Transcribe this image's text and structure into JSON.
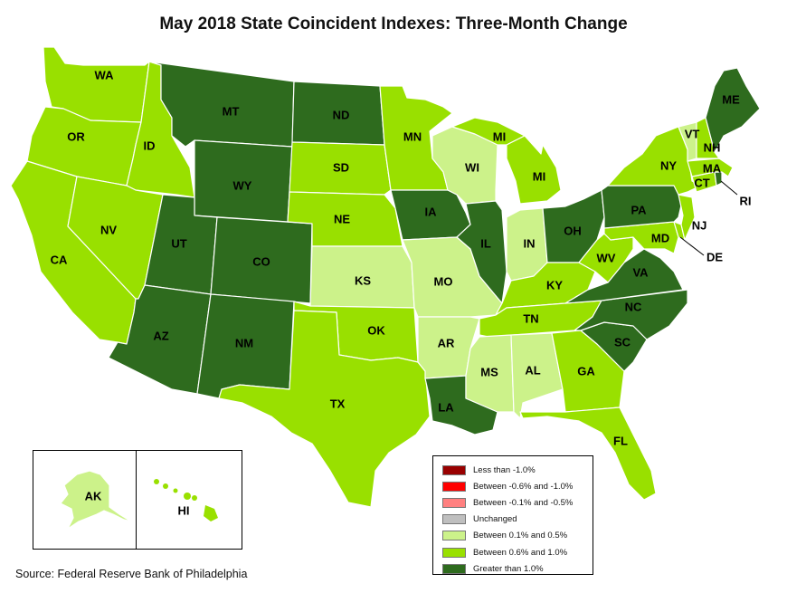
{
  "title": "May 2018 State Coincident Indexes: Three-Month Change",
  "source": "Source: Federal Reserve Bank of Philadelphia",
  "colors": {
    "less_than_neg1": "#990000",
    "neg06_to_neg1": "#ff0000",
    "neg01_to_neg05": "#ff8080",
    "unchanged": "#bfbfbf",
    "pos01_to_05": "#ccf28a",
    "pos06_to_1": "#99e000",
    "greater_than_1": "#2e6b1e"
  },
  "legend": [
    {
      "label": "Less than -1.0%",
      "color_key": "less_than_neg1"
    },
    {
      "label": "Between -0.6% and -1.0%",
      "color_key": "neg06_to_neg1"
    },
    {
      "label": "Between -0.1% and -0.5%",
      "color_key": "neg01_to_neg05"
    },
    {
      "label": "Unchanged",
      "color_key": "unchanged"
    },
    {
      "label": "Between 0.1% and 0.5%",
      "color_key": "pos01_to_05"
    },
    {
      "label": "Between 0.6% and 1.0%",
      "color_key": "pos06_to_1"
    },
    {
      "label": "Greater than 1.0%",
      "color_key": "greater_than_1"
    }
  ],
  "states": {
    "WA": "pos06_to_1",
    "OR": "pos06_to_1",
    "CA": "pos06_to_1",
    "ID": "pos06_to_1",
    "NV": "pos06_to_1",
    "MT": "greater_than_1",
    "WY": "greater_than_1",
    "UT": "greater_than_1",
    "AZ": "greater_than_1",
    "CO": "greater_than_1",
    "NM": "greater_than_1",
    "ND": "greater_than_1",
    "SD": "pos06_to_1",
    "NE": "pos06_to_1",
    "KS": "pos01_to_05",
    "OK": "pos06_to_1",
    "TX": "pos06_to_1",
    "MN": "pos06_to_1",
    "IA": "greater_than_1",
    "MO": "pos01_to_05",
    "AR": "pos01_to_05",
    "LA": "greater_than_1",
    "WI": "pos01_to_05",
    "IL": "greater_than_1",
    "MI": "pos06_to_1",
    "IN": "pos01_to_05",
    "OH": "greater_than_1",
    "KY": "pos06_to_1",
    "TN": "pos06_to_1",
    "MS": "pos01_to_05",
    "AL": "pos01_to_05",
    "GA": "pos06_to_1",
    "FL": "pos06_to_1",
    "SC": "greater_than_1",
    "NC": "greater_than_1",
    "VA": "greater_than_1",
    "WV": "pos06_to_1",
    "MD": "pos06_to_1",
    "DE": "pos06_to_1",
    "PA": "greater_than_1",
    "NJ": "pos06_to_1",
    "NY": "pos06_to_1",
    "CT": "pos06_to_1",
    "RI": "greater_than_1",
    "MA": "pos06_to_1",
    "VT": "pos01_to_05",
    "NH": "pos06_to_1",
    "ME": "greater_than_1",
    "AK": "pos01_to_05",
    "HI": "pos06_to_1"
  },
  "labels": {
    "WA": "WA",
    "OR": "OR",
    "CA": "CA",
    "ID": "ID",
    "NV": "NV",
    "MT": "MT",
    "WY": "WY",
    "UT": "UT",
    "AZ": "AZ",
    "CO": "CO",
    "NM": "NM",
    "ND": "ND",
    "SD": "SD",
    "NE": "NE",
    "KS": "KS",
    "OK": "OK",
    "TX": "TX",
    "MN": "MN",
    "IA": "IA",
    "MO": "MO",
    "AR": "AR",
    "LA": "LA",
    "WI": "WI",
    "IL": "IL",
    "MI_U": "MI",
    "MI_L": "MI",
    "IN": "IN",
    "OH": "OH",
    "KY": "KY",
    "TN": "TN",
    "MS": "MS",
    "AL": "AL",
    "GA": "GA",
    "FL": "FL",
    "SC": "SC",
    "NC": "NC",
    "VA": "VA",
    "WV": "WV",
    "MD": "MD",
    "DE": "DE",
    "PA": "PA",
    "NJ": "NJ",
    "NY": "NY",
    "CT": "CT",
    "RI": "RI",
    "MA": "MA",
    "VT": "VT",
    "NH": "NH",
    "ME": "ME",
    "AK": "AK",
    "HI": "HI"
  }
}
